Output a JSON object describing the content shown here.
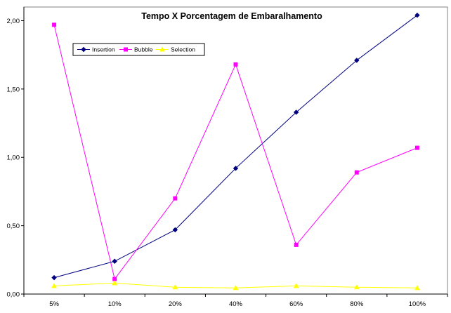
{
  "chart_data": {
    "type": "line",
    "title": "Tempo X Porcentagem de Embaralhamento",
    "xlabel": "",
    "ylabel": "",
    "categories": [
      "5%",
      "10%",
      "20%",
      "40%",
      "60%",
      "80%",
      "100%"
    ],
    "ylim": [
      0,
      2.1
    ],
    "yticks": [
      0,
      0.5,
      1,
      1.5,
      2
    ],
    "ytick_labels": [
      "0,00",
      "0,50",
      "1,00",
      "1,50",
      "2,00"
    ],
    "grid": false,
    "legend_position": "top-left",
    "series": [
      {
        "name": "Insertion",
        "color": "#000080",
        "marker": "diamond",
        "values": [
          0.12,
          0.24,
          0.47,
          0.92,
          1.33,
          1.71,
          2.04
        ]
      },
      {
        "name": "Bubble",
        "color": "#ff00ff",
        "marker": "square",
        "values": [
          1.97,
          0.11,
          0.7,
          1.68,
          0.36,
          0.89,
          1.07
        ]
      },
      {
        "name": "Selection",
        "color": "#ffff00",
        "marker": "triangle",
        "values": [
          0.06,
          0.08,
          0.05,
          0.045,
          0.06,
          0.05,
          0.045
        ]
      }
    ]
  }
}
